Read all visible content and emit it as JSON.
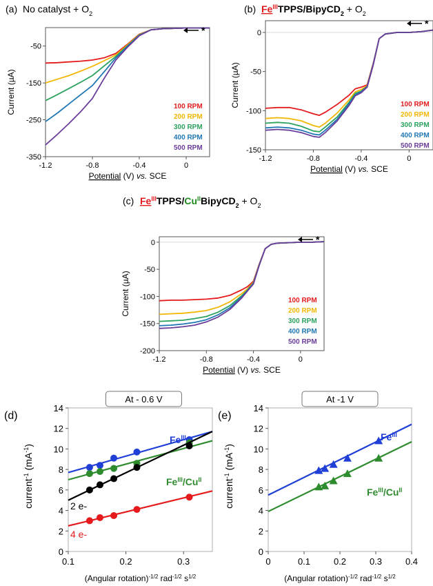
{
  "chart_data": [
    {
      "panel": "(a)",
      "title": "No catalyst + O2",
      "type": "line",
      "xlabel": "Potential (V) vs. SCE",
      "ylabel": "Current (µA)",
      "xlim": [
        -1.2,
        0.2
      ],
      "ylim": [
        -350,
        0
      ],
      "xticks": [
        -1.2,
        -0.8,
        -0.4,
        0
      ],
      "xtick_labels": [
        "-1.2",
        "-0.8",
        "-0.4",
        "0"
      ],
      "yticks": [
        -50,
        -150,
        -250,
        -350
      ],
      "ytick_labels": [
        "-50",
        "-150",
        "-250",
        "-350"
      ],
      "x": [
        -1.2,
        -1.1,
        -1.0,
        -0.9,
        -0.8,
        -0.7,
        -0.6,
        -0.5,
        -0.4,
        -0.3,
        -0.2,
        -0.1,
        0.0,
        0.1,
        0.2
      ],
      "series": [
        {
          "name": "100 RPM",
          "color": "#e41a1c",
          "values": [
            -96,
            -95,
            -93,
            -91,
            -88,
            -82,
            -70,
            -45,
            -18,
            -6,
            -3,
            -2,
            -1,
            -1,
            -1
          ]
        },
        {
          "name": "200 RPM",
          "color": "#f2b705",
          "values": [
            -150,
            -140,
            -130,
            -118,
            -105,
            -90,
            -74,
            -47,
            -19,
            -6,
            -3,
            -2,
            -1,
            -1,
            -1
          ]
        },
        {
          "name": "300 RPM",
          "color": "#2ca25f",
          "values": [
            -198,
            -182,
            -165,
            -148,
            -130,
            -104,
            -78,
            -49,
            -20,
            -6,
            -3,
            -2,
            -1,
            -1,
            -1
          ]
        },
        {
          "name": "400 RPM",
          "color": "#1f77b4",
          "values": [
            -255,
            -232,
            -207,
            -182,
            -157,
            -120,
            -82,
            -51,
            -21,
            -6,
            -3,
            -2,
            -1,
            -1,
            -1
          ]
        },
        {
          "name": "500 RPM",
          "color": "#6a3d9a",
          "values": [
            -318,
            -290,
            -260,
            -228,
            -192,
            -138,
            -88,
            -53,
            -22,
            -6,
            -3,
            -2,
            -1,
            -1,
            -1
          ]
        }
      ],
      "annotation": "*"
    },
    {
      "panel": "(b)",
      "title_parts": [
        {
          "text": "Fe",
          "style": "red-bold-underline"
        },
        {
          "text": "III",
          "style": "red-bold-sup"
        },
        {
          "text": "TPPS",
          "style": "bold"
        },
        {
          "text": "/BipyCD",
          "style": "bold"
        },
        {
          "text": "2",
          "style": "bold-sub"
        },
        {
          "text": " + O",
          "style": "plain"
        },
        {
          "text": "2",
          "style": "plain-sub"
        }
      ],
      "type": "line",
      "xlabel": "Potential (V) vs. SCE",
      "ylabel": "Current (µA)",
      "xlim": [
        -1.2,
        0.2
      ],
      "ylim": [
        -150,
        15
      ],
      "xticks": [
        -1.2,
        -0.8,
        -0.4,
        0
      ],
      "xtick_labels": [
        "-1.2",
        "-0.8",
        "-0.4",
        "0"
      ],
      "yticks": [
        0,
        -50,
        -100,
        -150
      ],
      "ytick_labels": [
        "0",
        "-50",
        "-100",
        "-150"
      ],
      "x": [
        -1.2,
        -1.1,
        -1.0,
        -0.9,
        -0.8,
        -0.75,
        -0.7,
        -0.6,
        -0.5,
        -0.45,
        -0.4,
        -0.35,
        -0.3,
        -0.25,
        -0.2,
        -0.1,
        0.0,
        0.1,
        0.2
      ],
      "series": [
        {
          "name": "100 RPM",
          "color": "#e41a1c",
          "values": [
            -97,
            -96,
            -96,
            -99,
            -104,
            -106,
            -102,
            -92,
            -80,
            -72,
            -70,
            -67,
            -40,
            -8,
            -2,
            0,
            0,
            1,
            3
          ]
        },
        {
          "name": "200 RPM",
          "color": "#f2b705",
          "values": [
            -110,
            -109,
            -110,
            -113,
            -119,
            -121,
            -116,
            -103,
            -86,
            -76,
            -73,
            -68,
            -41,
            -8,
            -2,
            0,
            0,
            1,
            3
          ]
        },
        {
          "name": "300 RPM",
          "color": "#2ca25f",
          "values": [
            -116,
            -115,
            -116,
            -120,
            -126,
            -127,
            -121,
            -108,
            -89,
            -78,
            -75,
            -69,
            -41,
            -8,
            -2,
            0,
            0,
            1,
            3
          ]
        },
        {
          "name": "400 RPM",
          "color": "#1f77b4",
          "values": [
            -122,
            -121,
            -122,
            -125,
            -130,
            -131,
            -125,
            -111,
            -91,
            -80,
            -76,
            -69,
            -41,
            -8,
            -2,
            0,
            0,
            1,
            3
          ]
        },
        {
          "name": "500 RPM",
          "color": "#6a3d9a",
          "values": [
            -125,
            -124,
            -125,
            -128,
            -133,
            -134,
            -128,
            -113,
            -93,
            -81,
            -77,
            -70,
            -42,
            -8,
            -2,
            0,
            0,
            1,
            3
          ]
        }
      ],
      "annotation": "*"
    },
    {
      "panel": "(c)",
      "title_parts": [
        {
          "text": "Fe",
          "style": "red-bold-underline"
        },
        {
          "text": "III",
          "style": "red-bold-sup"
        },
        {
          "text": "TPPS",
          "style": "bold"
        },
        {
          "text": "/",
          "style": "bold"
        },
        {
          "text": "Cu",
          "style": "green-bold"
        },
        {
          "text": "II",
          "style": "green-bold-sup"
        },
        {
          "text": "BipyCD",
          "style": "bold"
        },
        {
          "text": "2",
          "style": "bold-sub"
        },
        {
          "text": " + O",
          "style": "plain"
        },
        {
          "text": "2",
          "style": "plain-sub"
        }
      ],
      "type": "line",
      "xlabel": "Potential (V) vs. SCE",
      "ylabel": "Current (µA)",
      "xlim": [
        -1.2,
        0.2
      ],
      "ylim": [
        -200,
        10
      ],
      "xticks": [
        -1.2,
        -0.8,
        -0.4,
        0
      ],
      "xtick_labels": [
        "-1.2",
        "-0.8",
        "-0.4",
        "0"
      ],
      "yticks": [
        0,
        -50,
        -100,
        -150,
        -200
      ],
      "ytick_labels": [
        "0",
        "-50",
        "-100",
        "-150",
        "-200"
      ],
      "x": [
        -1.2,
        -1.1,
        -1.0,
        -0.9,
        -0.8,
        -0.7,
        -0.6,
        -0.5,
        -0.45,
        -0.4,
        -0.35,
        -0.3,
        -0.25,
        -0.2,
        -0.1,
        0.0,
        0.1,
        0.2
      ],
      "series": [
        {
          "name": "100 RPM",
          "color": "#e41a1c",
          "values": [
            -108,
            -107,
            -107,
            -106,
            -105,
            -103,
            -98,
            -88,
            -82,
            -72,
            -40,
            -12,
            -4,
            -2,
            -1,
            0,
            0,
            1
          ]
        },
        {
          "name": "200 RPM",
          "color": "#f2b705",
          "values": [
            -133,
            -132,
            -131,
            -129,
            -126,
            -120,
            -110,
            -95,
            -86,
            -74,
            -41,
            -12,
            -4,
            -2,
            -1,
            0,
            0,
            1
          ]
        },
        {
          "name": "300 RPM",
          "color": "#2ca25f",
          "values": [
            -146,
            -145,
            -144,
            -141,
            -137,
            -129,
            -117,
            -99,
            -88,
            -75,
            -41,
            -12,
            -4,
            -2,
            -1,
            0,
            0,
            1
          ]
        },
        {
          "name": "400 RPM",
          "color": "#1f77b4",
          "values": [
            -154,
            -153,
            -151,
            -148,
            -143,
            -134,
            -121,
            -101,
            -89,
            -76,
            -42,
            -12,
            -4,
            -2,
            -1,
            0,
            0,
            1
          ]
        },
        {
          "name": "500 RPM",
          "color": "#6a3d9a",
          "values": [
            -159,
            -158,
            -156,
            -153,
            -147,
            -138,
            -124,
            -103,
            -90,
            -77,
            -42,
            -12,
            -4,
            -2,
            -1,
            0,
            0,
            1
          ]
        }
      ],
      "annotation": "*"
    },
    {
      "panel": "(d)",
      "title": "At - 0.6 V",
      "type": "scatter",
      "xlabel_parts": [
        "(Angular rotation)",
        "-1/2",
        " rad",
        "-1/2",
        " s",
        "1/2"
      ],
      "ylabel_parts": [
        "current",
        "-1",
        " (mA",
        "-1",
        ")"
      ],
      "xlim": [
        0.1,
        0.35
      ],
      "ylim": [
        0,
        14
      ],
      "xticks": [
        0.1,
        0.2,
        0.3
      ],
      "xtick_labels": [
        "0.1",
        "0.2",
        "0.3"
      ],
      "yticks": [
        0,
        2,
        4,
        6,
        8,
        10,
        12,
        14
      ],
      "ytick_labels": [
        "0",
        "2",
        "4",
        "6",
        "8",
        "10",
        "12",
        "14"
      ],
      "x": [
        0.137,
        0.155,
        0.179,
        0.219,
        0.31
      ],
      "series": [
        {
          "label": "FeIII",
          "color": "#1f3fd6",
          "marker": "circle",
          "values": [
            8.2,
            8.4,
            9.1,
            9.7,
            10.9
          ],
          "fit": [
            [
              0.1,
              7.7
            ],
            [
              0.35,
              11.7
            ]
          ]
        },
        {
          "label": "FeIII/CuII",
          "color": "#2e8b2e",
          "marker": "circle",
          "values": [
            7.6,
            7.8,
            8.1,
            8.6,
            10.6
          ],
          "fit": [
            [
              0.1,
              7.0
            ],
            [
              0.35,
              10.8
            ]
          ]
        },
        {
          "label": "2 e-",
          "color": "#000000",
          "marker": "circle",
          "values": [
            6.0,
            6.5,
            7.1,
            8.2,
            10.3
          ],
          "fit": [
            [
              0.1,
              5.0
            ],
            [
              0.35,
              11.7
            ]
          ]
        },
        {
          "label": "4 e-",
          "color": "#e41a1c",
          "marker": "circle",
          "values": [
            3.0,
            3.3,
            3.5,
            4.1,
            5.3
          ],
          "fit": [
            [
              0.1,
              2.5
            ],
            [
              0.35,
              5.9
            ]
          ]
        }
      ]
    },
    {
      "panel": "(e)",
      "title": "At -1 V",
      "type": "scatter",
      "xlabel_parts": [
        "(Angular rotation)",
        "-1/2",
        " rad",
        "-1/2",
        " s",
        "1/2"
      ],
      "ylabel_parts": [
        "current",
        "-1",
        " (mA",
        "-1",
        ")"
      ],
      "xlim": [
        0,
        0.4
      ],
      "ylim": [
        0,
        14
      ],
      "xticks": [
        0,
        0.1,
        0.2,
        0.3,
        0.4
      ],
      "xtick_labels": [
        "0",
        "0.1",
        "0.2",
        "0.3",
        "0.4"
      ],
      "yticks": [
        0,
        2,
        4,
        6,
        8,
        10,
        12,
        14
      ],
      "ytick_labels": [
        "0",
        "2",
        "4",
        "6",
        "8",
        "10",
        "12",
        "14"
      ],
      "x": [
        0.141,
        0.158,
        0.182,
        0.221,
        0.308
      ],
      "series": [
        {
          "label": "FeIII",
          "color": "#1f3fd6",
          "marker": "triangle",
          "values": [
            7.9,
            8.1,
            8.5,
            9.1,
            10.8
          ],
          "fit": [
            [
              0,
              5.5
            ],
            [
              0.4,
              12.4
            ]
          ]
        },
        {
          "label": "FeIII/CuII",
          "color": "#2e8b2e",
          "marker": "triangle",
          "values": [
            6.3,
            6.4,
            6.9,
            7.6,
            9.1
          ],
          "fit": [
            [
              0,
              3.9
            ],
            [
              0.4,
              10.7
            ]
          ]
        }
      ]
    }
  ]
}
